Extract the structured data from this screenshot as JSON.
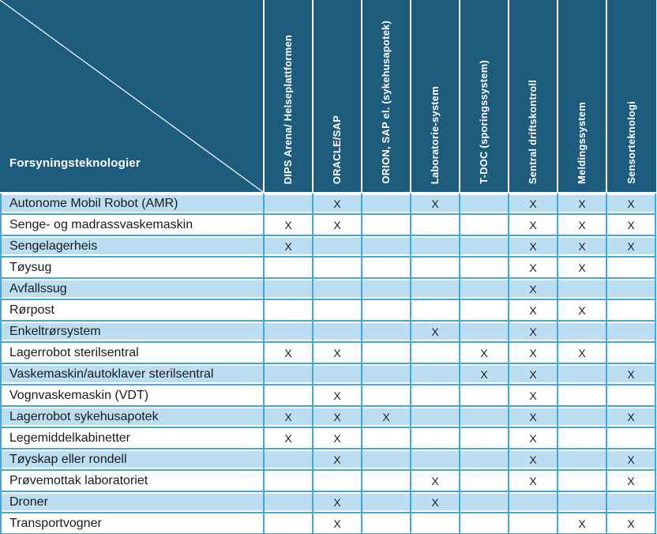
{
  "colors": {
    "header_bg": "#1E5C7E",
    "band_bg": "#BDDEF2",
    "grid_blue": "#41A8DC",
    "text_dark": "#1A1A1A",
    "header_text": "#FFFFFF"
  },
  "table": {
    "corner_label": "Forsyningsteknologier",
    "mark_symbol": "X",
    "columns": [
      "DIPS Arena/ Helseplattformen",
      "ORACLE/SAP",
      "ORION, SAP el. (sykehusapotek)",
      "Laboratorie-system",
      "T-DOC (sporingssystem)",
      "Sentral driftskontroll",
      "Meldingssystem",
      "Sensorteknologi"
    ],
    "rows": [
      {
        "label": "Autonome Mobil Robot (AMR)",
        "marks": [
          0,
          1,
          0,
          1,
          0,
          1,
          1,
          1
        ]
      },
      {
        "label": "Senge- og madrassvaskemaskin",
        "marks": [
          1,
          1,
          0,
          0,
          0,
          1,
          1,
          1
        ]
      },
      {
        "label": "Sengelagerheis",
        "marks": [
          1,
          0,
          0,
          0,
          0,
          1,
          1,
          1
        ]
      },
      {
        "label": "Tøysug",
        "marks": [
          0,
          0,
          0,
          0,
          0,
          1,
          1,
          0
        ]
      },
      {
        "label": "Avfallssug",
        "marks": [
          0,
          0,
          0,
          0,
          0,
          1,
          0,
          0
        ]
      },
      {
        "label": "Rørpost",
        "marks": [
          0,
          0,
          0,
          0,
          0,
          1,
          1,
          0
        ]
      },
      {
        "label": "Enkeltrørsystem",
        "marks": [
          0,
          0,
          0,
          1,
          0,
          1,
          0,
          0
        ]
      },
      {
        "label": "Lagerrobot sterilsentral",
        "marks": [
          1,
          1,
          0,
          0,
          1,
          1,
          1,
          0
        ]
      },
      {
        "label": "Vaskemaskin/autoklaver sterilsentral",
        "marks": [
          0,
          0,
          0,
          0,
          1,
          1,
          0,
          1
        ]
      },
      {
        "label": "Vognvaskemaskin (VDT)",
        "marks": [
          0,
          1,
          0,
          0,
          0,
          1,
          0,
          0
        ]
      },
      {
        "label": "Lagerrobot sykehusapotek",
        "marks": [
          1,
          1,
          1,
          0,
          0,
          1,
          0,
          1
        ]
      },
      {
        "label": "Legemiddelkabinetter",
        "marks": [
          1,
          1,
          0,
          0,
          0,
          1,
          0,
          0
        ]
      },
      {
        "label": "Tøyskap eller rondell",
        "marks": [
          0,
          1,
          0,
          0,
          0,
          1,
          0,
          1
        ]
      },
      {
        "label": "Prøvemottak laboratoriet",
        "marks": [
          0,
          0,
          0,
          1,
          0,
          1,
          0,
          1
        ]
      },
      {
        "label": "Droner",
        "marks": [
          0,
          1,
          0,
          1,
          0,
          0,
          0,
          0
        ]
      },
      {
        "label": "Transportvogner",
        "marks": [
          0,
          1,
          0,
          0,
          0,
          0,
          1,
          1
        ]
      }
    ]
  }
}
